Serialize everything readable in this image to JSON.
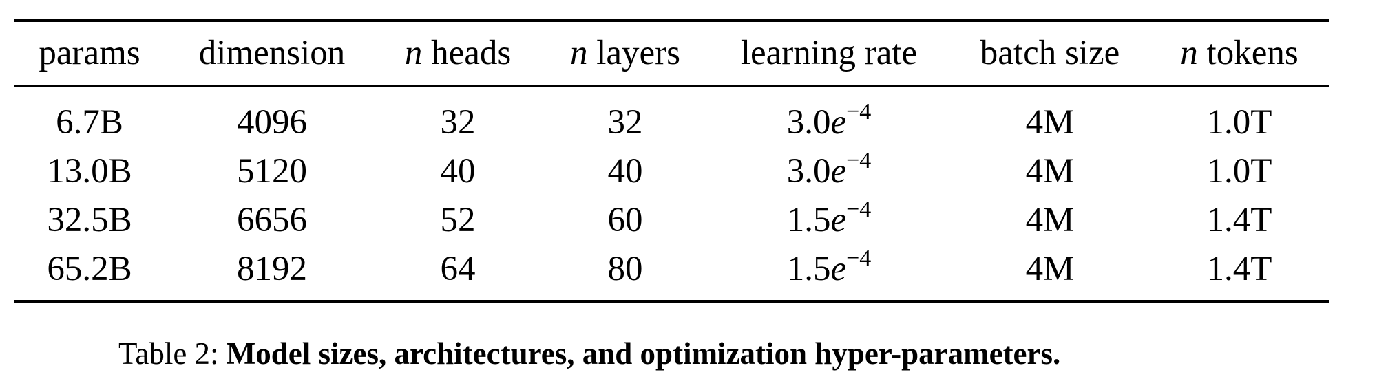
{
  "table": {
    "columns": [
      {
        "label": "params"
      },
      {
        "label": "dimension"
      },
      {
        "prefix": "n",
        "label": " heads"
      },
      {
        "prefix": "n",
        "label": " layers"
      },
      {
        "label": "learning rate"
      },
      {
        "label": "batch size"
      },
      {
        "prefix": "n",
        "label": " tokens"
      }
    ],
    "rows": [
      {
        "params": "6.7B",
        "dimension": "4096",
        "heads": "32",
        "layers": "32",
        "lr_mantissa": "3.0",
        "lr_exp_base": "e",
        "lr_exponent": "−4",
        "batch_size": "4M",
        "tokens": "1.0T"
      },
      {
        "params": "13.0B",
        "dimension": "5120",
        "heads": "40",
        "layers": "40",
        "lr_mantissa": "3.0",
        "lr_exp_base": "e",
        "lr_exponent": "−4",
        "batch_size": "4M",
        "tokens": "1.0T"
      },
      {
        "params": "32.5B",
        "dimension": "6656",
        "heads": "52",
        "layers": "60",
        "lr_mantissa": "1.5",
        "lr_exp_base": "e",
        "lr_exponent": "−4",
        "batch_size": "4M",
        "tokens": "1.4T"
      },
      {
        "params": "65.2B",
        "dimension": "8192",
        "heads": "64",
        "layers": "80",
        "lr_mantissa": "1.5",
        "lr_exp_base": "e",
        "lr_exponent": "−4",
        "batch_size": "4M",
        "tokens": "1.4T"
      }
    ]
  },
  "caption": {
    "prefix": "Table 2:",
    "text": "Model sizes, architectures, and optimization hyper-parameters."
  }
}
